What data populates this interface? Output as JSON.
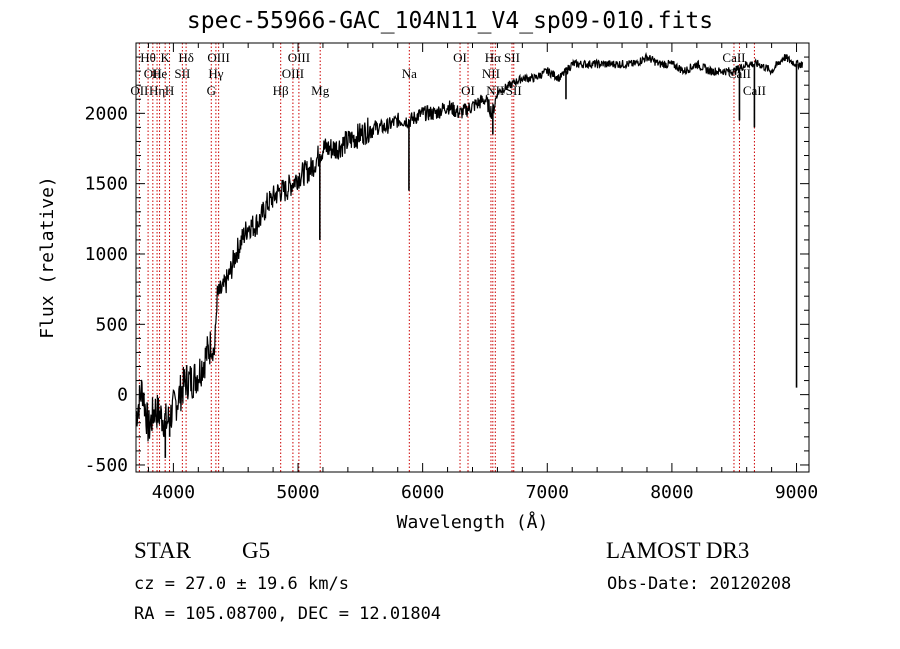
{
  "chart_data": {
    "type": "line",
    "title": "spec-55966-GAC_104N11_V4_sp09-010.fits",
    "xlabel": "Wavelength (Å)",
    "ylabel": "Flux (relative)",
    "xlim": [
      3700,
      9100
    ],
    "ylim": [
      -550,
      2500
    ],
    "xticks": [
      4000,
      5000,
      6000,
      7000,
      8000,
      9000
    ],
    "yticks": [
      -500,
      0,
      500,
      1000,
      1500,
      2000
    ],
    "series": [
      {
        "name": "flux",
        "x": [
          3700,
          3750,
          3800,
          3850,
          3900,
          3950,
          4000,
          4050,
          4100,
          4150,
          4200,
          4250,
          4300,
          4330,
          4350,
          4400,
          4450,
          4500,
          4550,
          4600,
          4650,
          4700,
          4750,
          4800,
          4850,
          4900,
          4950,
          5000,
          5100,
          5200,
          5300,
          5400,
          5500,
          5600,
          5700,
          5800,
          5900,
          6000,
          6100,
          6200,
          6300,
          6400,
          6500,
          6560,
          6600,
          6700,
          6800,
          6900,
          7000,
          7100,
          7200,
          7300,
          7400,
          7500,
          7600,
          7700,
          7800,
          7900,
          8000,
          8100,
          8200,
          8300,
          8400,
          8500,
          8600,
          8700,
          8800,
          8900,
          9000,
          9050
        ],
        "y": [
          -150,
          50,
          -250,
          -100,
          -150,
          -200,
          -100,
          0,
          100,
          100,
          150,
          250,
          350,
          300,
          700,
          750,
          850,
          1000,
          1100,
          1200,
          1200,
          1250,
          1350,
          1400,
          1450,
          1450,
          1500,
          1550,
          1600,
          1750,
          1750,
          1800,
          1850,
          1900,
          1900,
          1950,
          1950,
          2000,
          2000,
          2050,
          2000,
          2050,
          2100,
          2000,
          2150,
          2200,
          2250,
          2250,
          2300,
          2250,
          2350,
          2350,
          2350,
          2350,
          2350,
          2350,
          2400,
          2350,
          2350,
          2300,
          2350,
          2300,
          2300,
          2300,
          2350,
          2350,
          2300,
          2400,
          2350,
          2350
        ]
      }
    ],
    "dips": [
      {
        "x": 5890,
        "y": 1450
      },
      {
        "x": 5175,
        "y": 1100
      },
      {
        "x": 3935,
        "y": -450
      },
      {
        "x": 3970,
        "y": -300
      },
      {
        "x": 6563,
        "y": 1850
      },
      {
        "x": 7150,
        "y": 2100
      },
      {
        "x": 8542,
        "y": 1950
      },
      {
        "x": 8662,
        "y": 1900
      },
      {
        "x": 9000,
        "y": 50
      }
    ],
    "lines": [
      {
        "x": 3727,
        "labels": [
          {
            "text": "OII",
            "row": 3
          }
        ]
      },
      {
        "x": 3797,
        "labels": [
          {
            "text": "Hθ",
            "row": 1
          }
        ]
      },
      {
        "x": 3835,
        "labels": [
          {
            "text": "OII",
            "row": 2
          }
        ]
      },
      {
        "x": 3869,
        "labels": [
          {
            "text": "Hη",
            "row": 3
          }
        ]
      },
      {
        "x": 3889,
        "labels": [
          {
            "text": "He",
            "row": 2
          }
        ]
      },
      {
        "x": 3934,
        "labels": [
          {
            "text": "K",
            "row": 1
          }
        ]
      },
      {
        "x": 3969,
        "labels": [
          {
            "text": "H",
            "row": 3
          }
        ]
      },
      {
        "x": 4072,
        "labels": [
          {
            "text": "SII",
            "row": 2
          }
        ]
      },
      {
        "x": 4102,
        "labels": [
          {
            "text": "Hδ",
            "row": 1
          }
        ]
      },
      {
        "x": 4304,
        "labels": [
          {
            "text": "G",
            "row": 3
          }
        ]
      },
      {
        "x": 4341,
        "labels": [
          {
            "text": "Hγ",
            "row": 2
          }
        ]
      },
      {
        "x": 4363,
        "labels": [
          {
            "text": "OIII",
            "row": 1
          }
        ]
      },
      {
        "x": 4861,
        "labels": [
          {
            "text": "Hβ",
            "row": 3
          }
        ]
      },
      {
        "x": 4959,
        "labels": [
          {
            "text": "OIII",
            "row": 2
          }
        ]
      },
      {
        "x": 5007,
        "labels": [
          {
            "text": "OIII",
            "row": 1
          }
        ]
      },
      {
        "x": 5178,
        "labels": [
          {
            "text": "Mg",
            "row": 3
          }
        ]
      },
      {
        "x": 5893,
        "labels": [
          {
            "text": "Na",
            "row": 2
          }
        ]
      },
      {
        "x": 6300,
        "labels": [
          {
            "text": "OI",
            "row": 1
          }
        ]
      },
      {
        "x": 6364,
        "labels": [
          {
            "text": "OI",
            "row": 3
          }
        ]
      },
      {
        "x": 6548,
        "labels": [
          {
            "text": "NII",
            "row": 2
          }
        ]
      },
      {
        "x": 6563,
        "labels": [
          {
            "text": "Hα",
            "row": 1
          }
        ]
      },
      {
        "x": 6583,
        "labels": [
          {
            "text": "NII",
            "row": 3
          }
        ]
      },
      {
        "x": 6717,
        "labels": [
          {
            "text": "SII",
            "row": 1
          }
        ]
      },
      {
        "x": 6731,
        "labels": [
          {
            "text": "SII",
            "row": 3
          }
        ]
      },
      {
        "x": 8498,
        "labels": [
          {
            "text": "CaII",
            "row": 1
          }
        ]
      },
      {
        "x": 8542,
        "labels": [
          {
            "text": "CaII",
            "row": 2
          }
        ]
      },
      {
        "x": 8662,
        "labels": [
          {
            "text": "CaII",
            "row": 3
          }
        ]
      }
    ]
  },
  "info": {
    "object_class": "STAR",
    "subclass": "G5",
    "survey": "LAMOST DR3",
    "redshift": "cz = 27.0 ± 19.6 km/s",
    "coords": "RA = 105.08700, DEC =  12.01804",
    "obs_date": "Obs-Date: 20120208"
  },
  "colors": {
    "marker_line": "#cc0000",
    "spectrum": "#000000",
    "axis": "#000000"
  }
}
